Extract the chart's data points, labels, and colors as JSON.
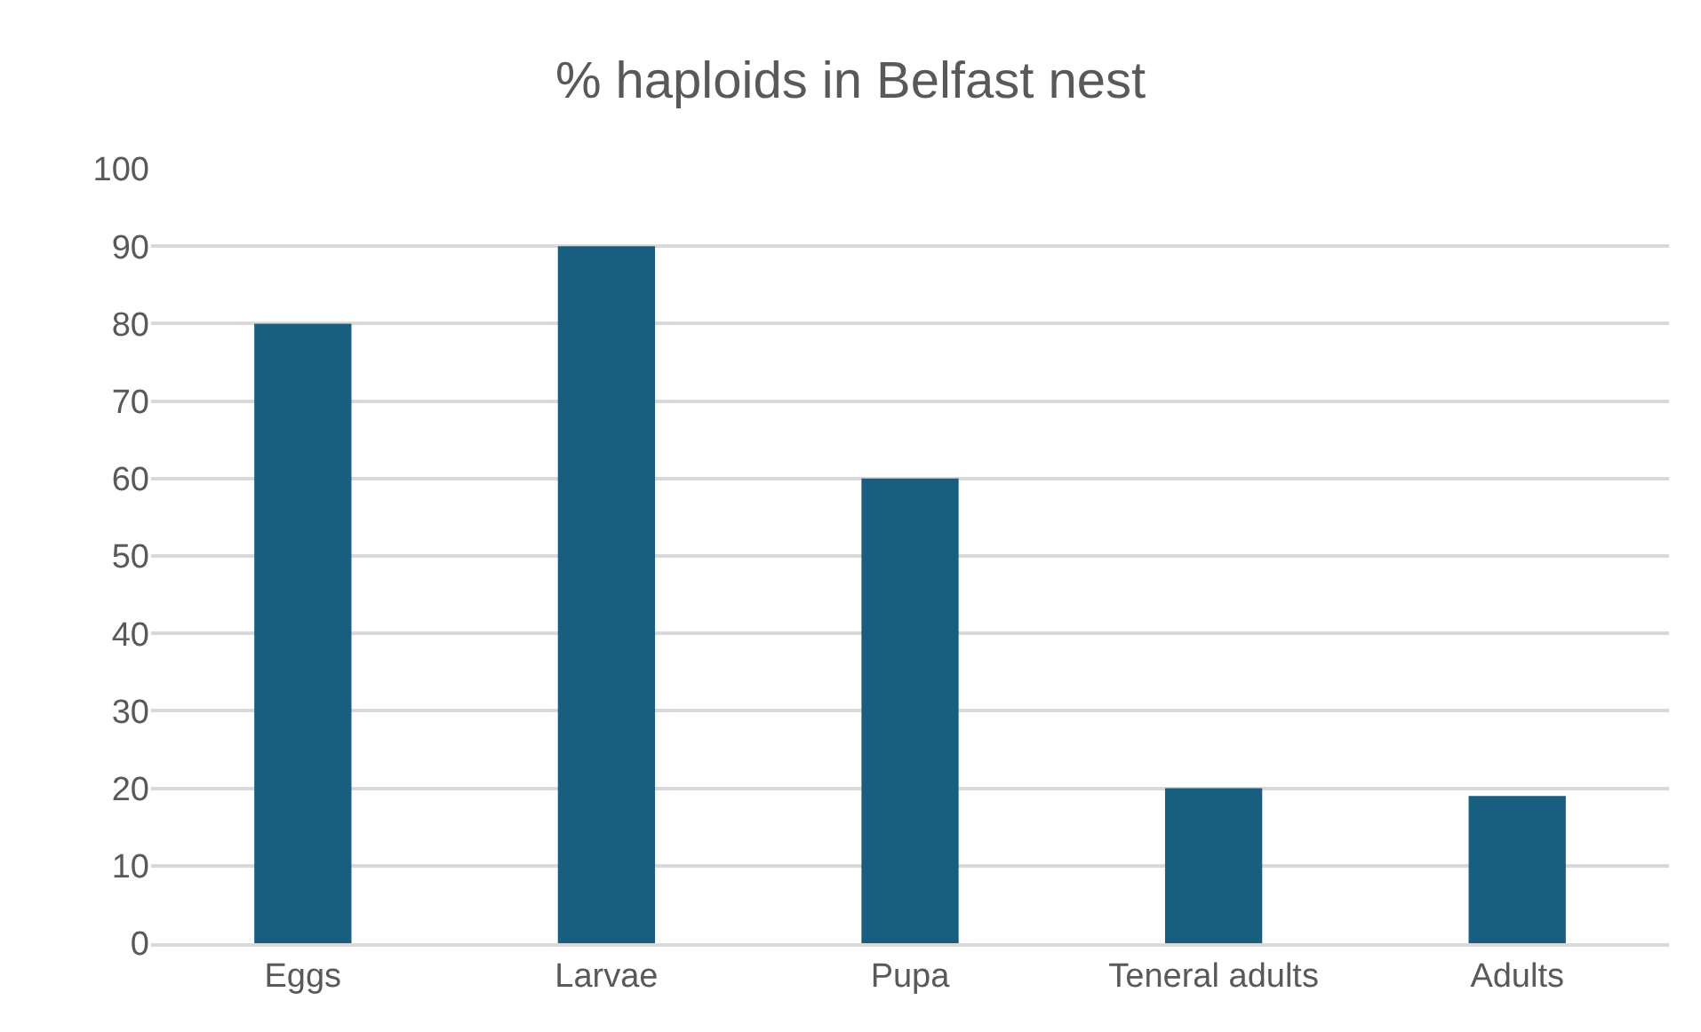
{
  "chart_data": {
    "type": "bar",
    "title": "% haploids in Belfast nest",
    "categories": [
      "Eggs",
      "Larvae",
      "Pupa",
      "Teneral adults",
      "Adults"
    ],
    "values": [
      80,
      90,
      60,
      20,
      19
    ],
    "color": "#175e7f",
    "ylim": [
      0,
      100
    ],
    "yticks": [
      0,
      10,
      20,
      30,
      40,
      50,
      60,
      70,
      80,
      90,
      100
    ],
    "grid": "y"
  }
}
